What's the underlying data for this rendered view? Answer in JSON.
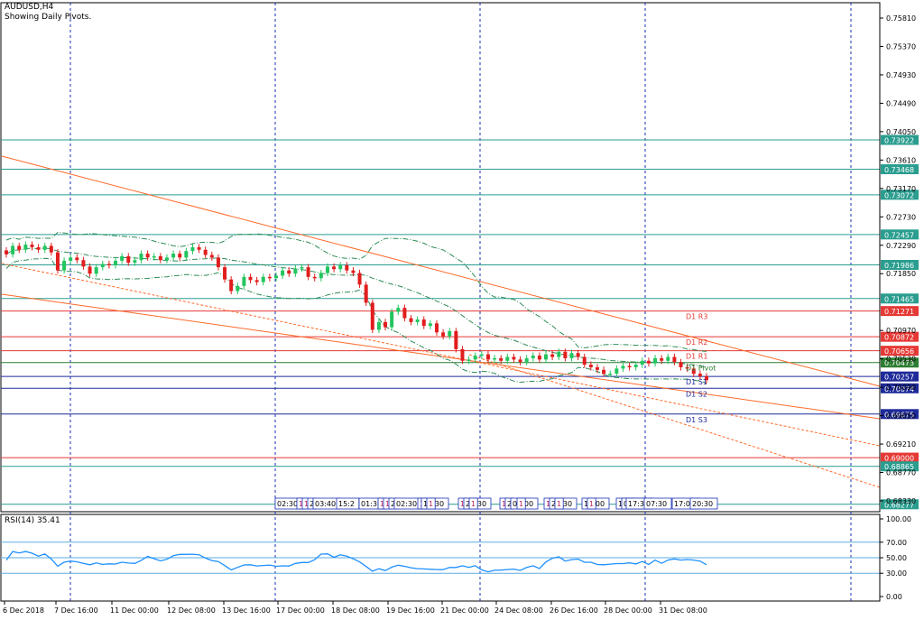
{
  "header": {
    "symbol": "AUDUSD,H4",
    "subtitle": "Showing Daily Pivots."
  },
  "rsi": {
    "label": "RSI(14) 35.41",
    "levels": [
      "100.00",
      "70.00",
      "50.00",
      "30.00",
      "0.00"
    ],
    "line_color": "#1e90ff"
  },
  "colors": {
    "bull": "#22c55e",
    "bear": "#e11d1d",
    "trend": "#ff6a2a",
    "horizontal": "#2a9d8f",
    "pivot_red": "#e53935",
    "pivot_blue": "#1f2a9a",
    "pivot_green": "#2e7d32",
    "bollinger": "#2e8b57"
  },
  "chart_data": {
    "type": "candlestick",
    "title": "AUDUSD,H4",
    "subtitle": "Showing Daily Pivots.",
    "ylim": [
      0.68,
      0.76
    ],
    "price_ticks": [
      "0.75810",
      "0.75370",
      "0.74930",
      "0.74490",
      "0.74050",
      "0.73610",
      "0.73170",
      "0.72730",
      "0.72290",
      "0.71850",
      "0.70970",
      "0.70530",
      "0.70090",
      "0.69650",
      "0.69210",
      "0.68770",
      "0.68330"
    ],
    "x_ticks": [
      "6 Dec 2018",
      "7 Dec 16:00",
      "11 Dec 00:00",
      "12 Dec 08:00",
      "13 Dec 16:00",
      "17 Dec 00:00",
      "18 Dec 08:00",
      "19 Dec 16:00",
      "21 Dec 00:00",
      "24 Dec 08:00",
      "26 Dec 16:00",
      "28 Dec 00:00",
      "31 Dec 08:00"
    ],
    "levels": [
      {
        "value": 0.73922,
        "label": "0.73922",
        "kind": "h"
      },
      {
        "value": 0.73468,
        "label": "0.73468",
        "kind": "h"
      },
      {
        "value": 0.73072,
        "label": "0.73072",
        "kind": "h"
      },
      {
        "value": 0.72457,
        "label": "0.72457",
        "kind": "h"
      },
      {
        "value": 0.71986,
        "label": "0.71986",
        "kind": "h"
      },
      {
        "value": 0.71465,
        "label": "0.71465",
        "kind": "h"
      },
      {
        "value": 0.71271,
        "label": "0.71271",
        "kind": "r",
        "pivot": "D1 R3"
      },
      {
        "value": 0.70872,
        "label": "0.70872",
        "kind": "r",
        "pivot": "D1 R2"
      },
      {
        "value": 0.70656,
        "label": "0.70656",
        "kind": "r",
        "pivot": "D1 R1"
      },
      {
        "value": 0.70473,
        "label": "0.70473",
        "kind": "g",
        "pivot": "D1 Pivot"
      },
      {
        "value": 0.70257,
        "label": "0.70257",
        "kind": "b",
        "pivot": "D1 S1"
      },
      {
        "value": 0.70074,
        "label": "0.70074",
        "kind": "b",
        "pivot": "D1 S2"
      },
      {
        "value": 0.69675,
        "label": "0.69675",
        "kind": "b",
        "pivot": "D1 S3"
      },
      {
        "value": 0.69,
        "label": "0.69000",
        "kind": "r"
      },
      {
        "value": 0.68865,
        "label": "0.68865",
        "kind": "h"
      },
      {
        "value": 0.68277,
        "label": "0.68277",
        "kind": "h"
      }
    ],
    "session_labels": [
      "02:30",
      "1",
      "1",
      "2",
      "03:40",
      "15:2",
      "01:30",
      "1",
      "1",
      "2",
      "02:30",
      "1",
      "18:30",
      "1",
      "1",
      "22:30",
      "1",
      "1",
      "2",
      "02:00",
      "1",
      "1",
      "23:30",
      "1",
      "16:00",
      "1",
      "17:",
      "02:30",
      "17:30",
      "07:30",
      "17:00",
      "20:30"
    ],
    "closes": [
      0.7215,
      0.7228,
      0.7222,
      0.723,
      0.7226,
      0.7222,
      0.7228,
      0.7218,
      0.719,
      0.7205,
      0.721,
      0.7206,
      0.7196,
      0.7185,
      0.7195,
      0.72,
      0.7198,
      0.7205,
      0.7212,
      0.7202,
      0.7206,
      0.7216,
      0.721,
      0.7212,
      0.7206,
      0.721,
      0.7216,
      0.721,
      0.722,
      0.7226,
      0.7222,
      0.7214,
      0.721,
      0.7195,
      0.7176,
      0.7158,
      0.7166,
      0.718,
      0.7175,
      0.7172,
      0.718,
      0.7178,
      0.7182,
      0.719,
      0.7185,
      0.7193,
      0.7195,
      0.718,
      0.7178,
      0.7186,
      0.7196,
      0.7192,
      0.7198,
      0.719,
      0.7186,
      0.7168,
      0.714,
      0.7098,
      0.711,
      0.7102,
      0.7126,
      0.7132,
      0.7116,
      0.711,
      0.7114,
      0.7104,
      0.7108,
      0.7094,
      0.7088,
      0.7096,
      0.7068,
      0.705,
      0.7052,
      0.7058,
      0.706,
      0.7052,
      0.7054,
      0.705,
      0.7056,
      0.7052,
      0.7048,
      0.7054,
      0.7058,
      0.7052,
      0.706,
      0.7056,
      0.7064,
      0.7054,
      0.7062,
      0.7056,
      0.7044,
      0.704,
      0.7036,
      0.703,
      0.703,
      0.7038,
      0.7042,
      0.704,
      0.7044,
      0.705,
      0.7046,
      0.7054,
      0.705,
      0.7056,
      0.7048,
      0.704,
      0.7038,
      0.703,
      0.7026,
      0.702
    ]
  }
}
